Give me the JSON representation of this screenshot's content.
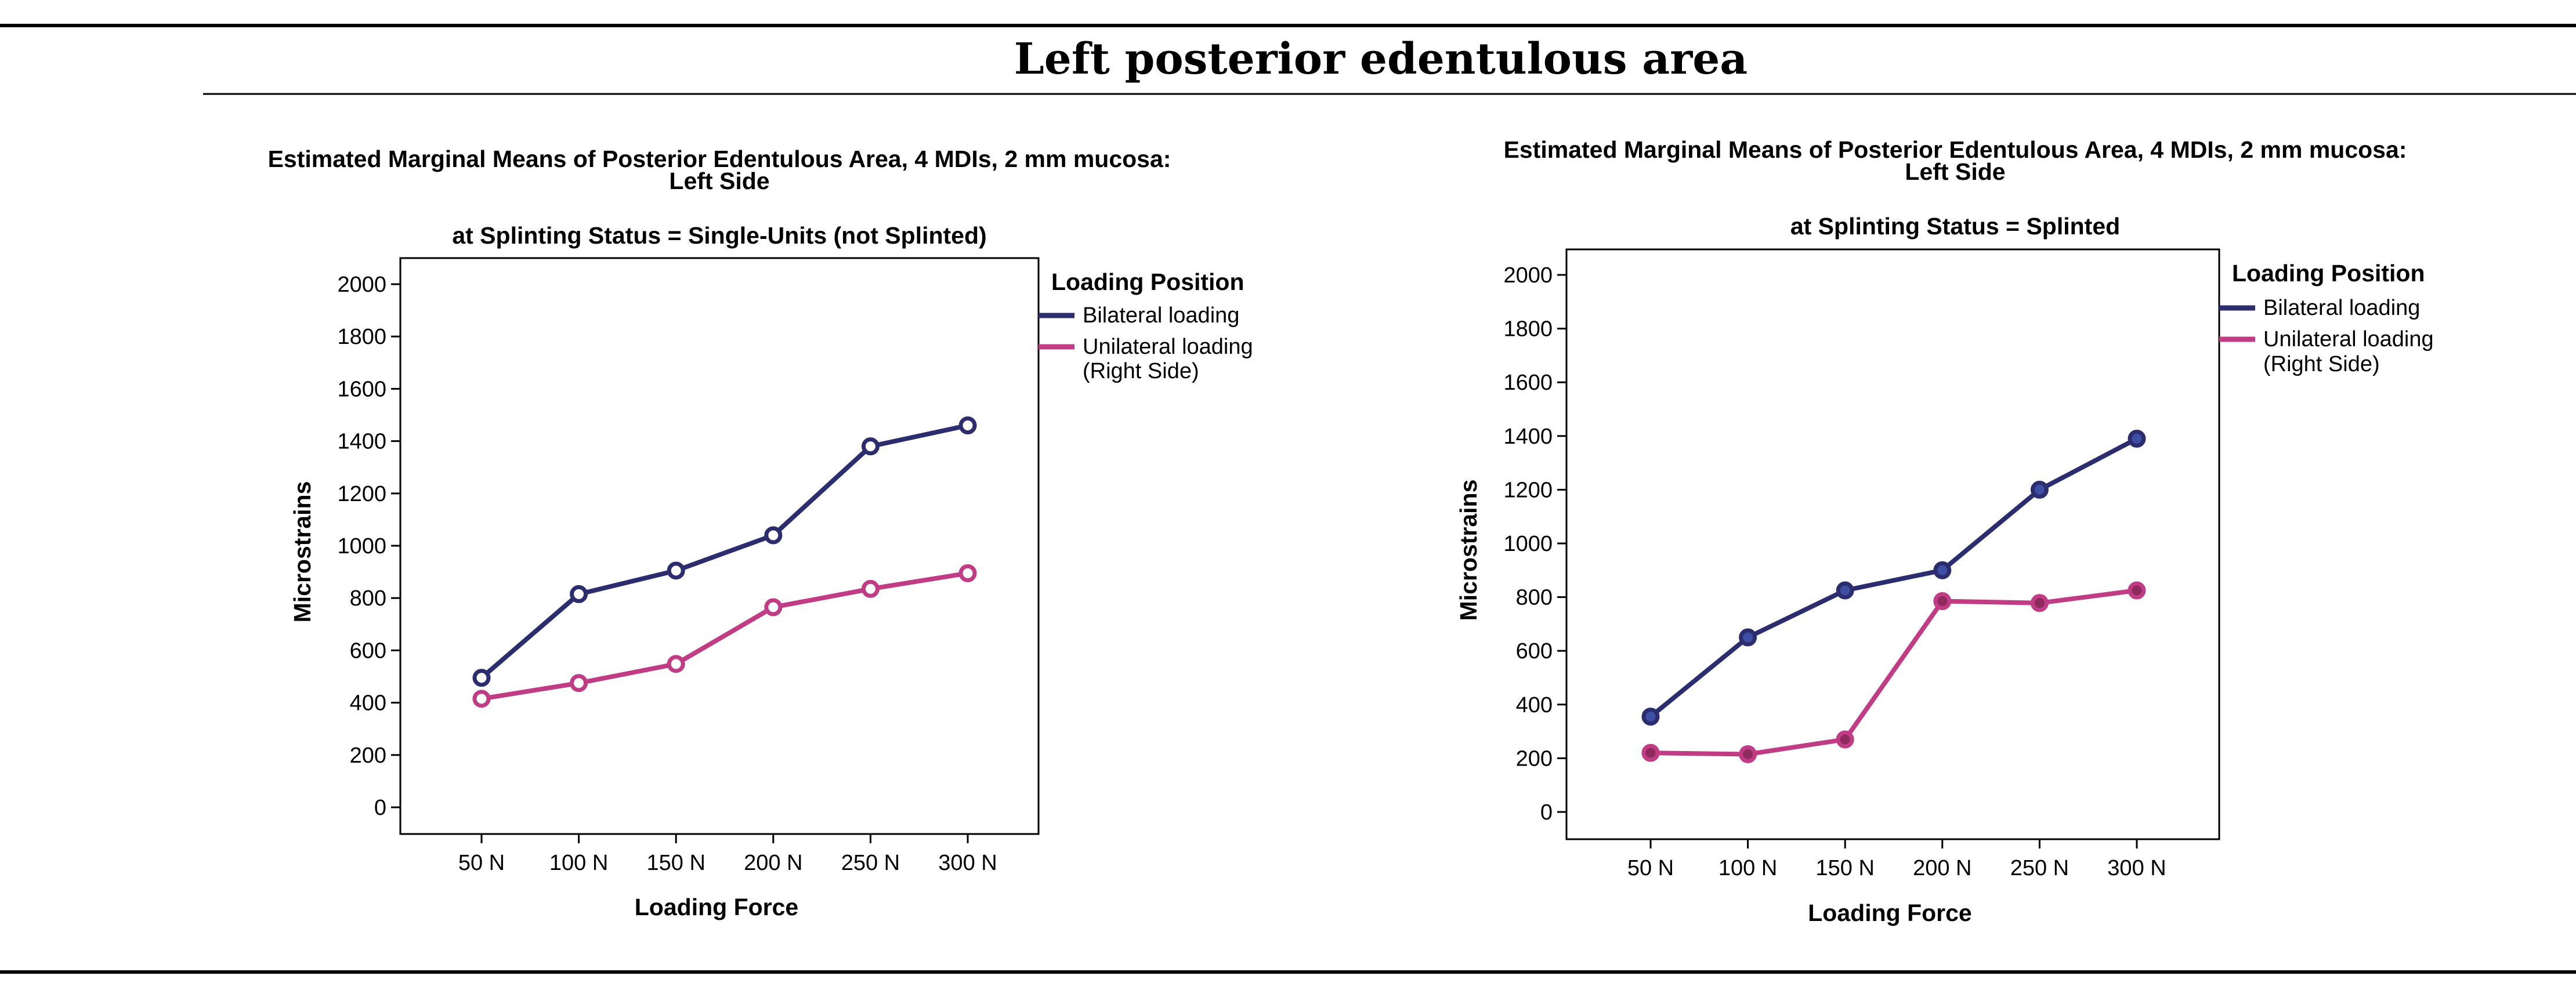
{
  "figure": {
    "heading": "Left posterior edentulous area"
  },
  "chart_data": [
    {
      "type": "line",
      "title": [
        "Estimated Marginal Means of Posterior Edentulous Area, 4 MDIs, 2 mm mucosa:",
        "Left Side"
      ],
      "subtitle": "at Splinting Status = Single-Units (not Splinted)",
      "xlabel": "Loading Force",
      "ylabel": "Microstrains",
      "categories": [
        "50 N",
        "100 N",
        "150 N",
        "200 N",
        "250 N",
        "300 N"
      ],
      "ylim": [
        -100,
        2100
      ],
      "yticks": [
        0,
        200,
        400,
        600,
        800,
        1000,
        1200,
        1400,
        1600,
        1800,
        2000
      ],
      "grid": false,
      "legend": {
        "title": "Loading Position",
        "placement": "right"
      },
      "series": [
        {
          "name": [
            "Bilateral loading"
          ],
          "color": "#2b2d6e",
          "marker_fill": "#ffffff",
          "values": [
            495,
            815,
            905,
            1040,
            1380,
            1460
          ]
        },
        {
          "name": [
            "Unilateral loading",
            "(Right Side)"
          ],
          "color": "#c03d85",
          "marker_fill": "#ffffff",
          "values": [
            415,
            475,
            548,
            765,
            835,
            895
          ]
        }
      ]
    },
    {
      "type": "line",
      "title": [
        "Estimated Marginal Means of Posterior Edentulous Area, 4 MDIs, 2 mm mucosa:",
        "Left Side"
      ],
      "subtitle": "at Splinting Status = Splinted",
      "xlabel": "Loading Force",
      "ylabel": "Microstrains",
      "categories": [
        "50 N",
        "100 N",
        "150 N",
        "200 N",
        "250 N",
        "300 N"
      ],
      "ylim": [
        -100,
        2100
      ],
      "yticks": [
        0,
        200,
        400,
        600,
        800,
        1000,
        1200,
        1400,
        1600,
        1800,
        2000
      ],
      "grid": false,
      "legend": {
        "title": "Loading Position",
        "placement": "right"
      },
      "series": [
        {
          "name": [
            "Bilateral loading"
          ],
          "color": "#2b2d6e",
          "marker_fill": "#3d4fa3",
          "values": [
            355,
            650,
            825,
            900,
            1200,
            1390
          ]
        },
        {
          "name": [
            "Unilateral loading",
            "(Right Side)"
          ],
          "color": "#c03d85",
          "marker_fill": "#8e2a5e",
          "values": [
            220,
            215,
            270,
            785,
            778,
            825
          ]
        }
      ]
    }
  ]
}
